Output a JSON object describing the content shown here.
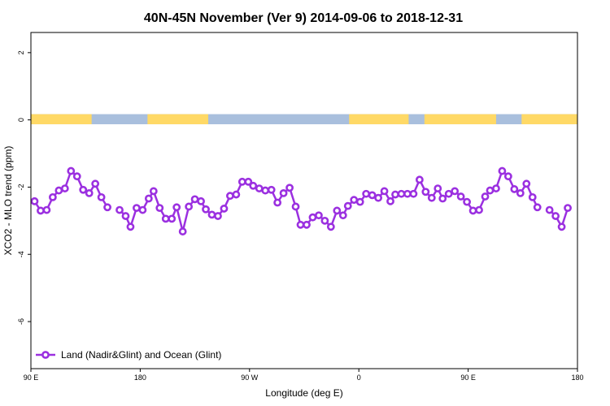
{
  "chart_data": {
    "type": "line",
    "title": "40N-45N November (Ver 9)   2014-09-06 to 2018-12-31",
    "xlabel": "Longitude (deg E)",
    "ylabel": "XCO2 - MLO trend (ppm)",
    "x_ticks": [
      {
        "value": 90,
        "label": "90 E"
      },
      {
        "value": 180,
        "label": "180"
      },
      {
        "value": 270,
        "label": "90 W"
      },
      {
        "value": 360,
        "label": "0"
      },
      {
        "value": 450,
        "label": "90 E"
      },
      {
        "value": 540,
        "label": "180"
      }
    ],
    "y_ticks": [
      {
        "value": 2,
        "label": "2"
      },
      {
        "value": 0,
        "label": "0"
      },
      {
        "value": -2,
        "label": "-2"
      },
      {
        "value": -4,
        "label": "-4"
      },
      {
        "value": -6,
        "label": "-6"
      }
    ],
    "xlim": [
      90,
      540
    ],
    "ylim": [
      -7.4,
      2.6
    ],
    "grid": false,
    "legend_position": "bottom-left",
    "land_ocean_band": {
      "y_range": [
        -0.13,
        0.17
      ],
      "land_color": "#FFD966",
      "ocean_color": "#A9BFDD",
      "land_segments": [
        [
          90,
          140
        ],
        [
          186,
          236
        ],
        [
          352,
          401
        ],
        [
          414,
          473
        ],
        [
          494,
          540
        ]
      ]
    },
    "series": [
      {
        "name": "Land (Nadir&Glint) and Ocean (Glint)",
        "color": "#9B30E0",
        "segments": [
          [
            [
              93,
              -2.42
            ],
            [
              98,
              -2.7
            ],
            [
              103,
              -2.68
            ],
            [
              108,
              -2.3
            ],
            [
              113,
              -2.1
            ],
            [
              118,
              -2.04
            ],
            [
              123,
              -1.52
            ],
            [
              128,
              -1.68
            ],
            [
              133,
              -2.08
            ],
            [
              138,
              -2.18
            ],
            [
              143,
              -1.9
            ],
            [
              148,
              -2.3
            ],
            [
              153,
              -2.6
            ]
          ],
          [
            [
              163,
              -2.68
            ],
            [
              168,
              -2.86
            ],
            [
              172,
              -3.18
            ],
            [
              177,
              -2.62
            ],
            [
              182,
              -2.68
            ],
            [
              187,
              -2.34
            ],
            [
              191,
              -2.12
            ],
            [
              196,
              -2.62
            ],
            [
              201,
              -2.94
            ],
            [
              206,
              -2.94
            ],
            [
              210,
              -2.6
            ],
            [
              215,
              -3.32
            ],
            [
              220,
              -2.58
            ],
            [
              225,
              -2.36
            ],
            [
              230,
              -2.42
            ],
            [
              234,
              -2.66
            ],
            [
              239,
              -2.82
            ],
            [
              244,
              -2.86
            ],
            [
              249,
              -2.64
            ],
            [
              254,
              -2.26
            ],
            [
              259,
              -2.22
            ],
            [
              264,
              -1.84
            ],
            [
              269,
              -1.84
            ],
            [
              273,
              -1.96
            ],
            [
              278,
              -2.04
            ],
            [
              283,
              -2.1
            ],
            [
              288,
              -2.08
            ],
            [
              293,
              -2.46
            ],
            [
              298,
              -2.18
            ],
            [
              303,
              -2.02
            ],
            [
              308,
              -2.58
            ],
            [
              312,
              -3.12
            ],
            [
              317,
              -3.12
            ],
            [
              322,
              -2.9
            ],
            [
              327,
              -2.84
            ],
            [
              332,
              -3.0
            ],
            [
              337,
              -3.18
            ],
            [
              342,
              -2.7
            ],
            [
              347,
              -2.84
            ],
            [
              351,
              -2.56
            ],
            [
              356,
              -2.38
            ],
            [
              361,
              -2.44
            ],
            [
              366,
              -2.2
            ],
            [
              371,
              -2.24
            ],
            [
              376,
              -2.32
            ],
            [
              381,
              -2.12
            ],
            [
              386,
              -2.42
            ],
            [
              390,
              -2.22
            ],
            [
              395,
              -2.2
            ],
            [
              400,
              -2.2
            ],
            [
              405,
              -2.2
            ],
            [
              410,
              -1.78
            ],
            [
              415,
              -2.14
            ],
            [
              420,
              -2.32
            ],
            [
              425,
              -2.04
            ],
            [
              429,
              -2.34
            ],
            [
              434,
              -2.2
            ],
            [
              439,
              -2.12
            ],
            [
              444,
              -2.28
            ],
            [
              449,
              -2.44
            ],
            [
              454,
              -2.7
            ],
            [
              459,
              -2.68
            ],
            [
              464,
              -2.28
            ],
            [
              468,
              -2.1
            ],
            [
              473,
              -2.04
            ],
            [
              478,
              -1.52
            ],
            [
              483,
              -1.68
            ],
            [
              488,
              -2.06
            ],
            [
              493,
              -2.18
            ],
            [
              498,
              -1.9
            ],
            [
              503,
              -2.3
            ],
            [
              507,
              -2.6
            ]
          ],
          [
            [
              517,
              -2.68
            ],
            [
              522,
              -2.86
            ],
            [
              527,
              -3.18
            ],
            [
              532,
              -2.62
            ]
          ]
        ]
      }
    ]
  }
}
